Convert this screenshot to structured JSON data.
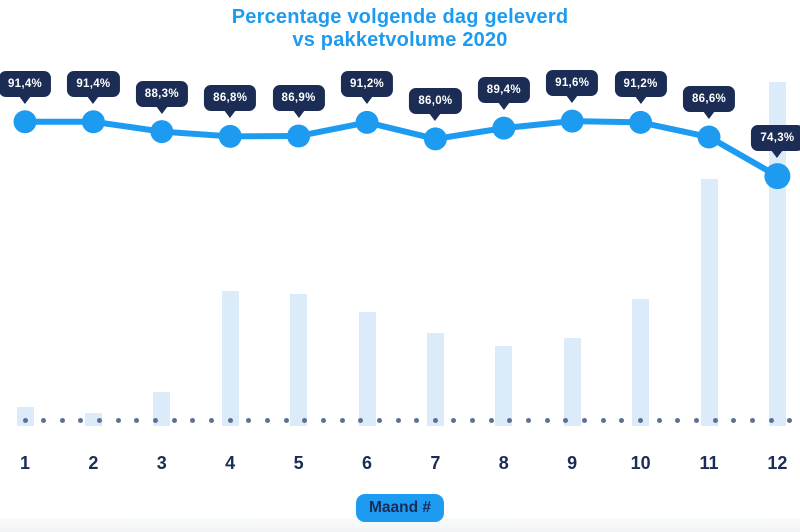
{
  "title": {
    "line1": "Percentage volgende dag geleverd",
    "line2": "vs pakketvolume 2020"
  },
  "x_axis": {
    "label_pill": "Maand #"
  },
  "chart_data": {
    "type": "line",
    "subtype": "line-with-bars-combo",
    "title": "Percentage volgende dag geleverd vs pakketvolume 2020",
    "xlabel": "Maand #",
    "ylabel": "",
    "legend": "none",
    "grid": "none (dotted baseline only)",
    "categories": [
      "1",
      "2",
      "3",
      "4",
      "5",
      "6",
      "7",
      "8",
      "9",
      "10",
      "11",
      "12"
    ],
    "series": [
      {
        "name": "Percentage volgende dag geleverd",
        "type": "line",
        "unit": "%",
        "values": [
          91.4,
          91.4,
          88.3,
          86.8,
          86.9,
          91.2,
          86.0,
          89.4,
          91.6,
          91.2,
          86.6,
          74.3
        ],
        "labels": [
          "91,4%",
          "91,4%",
          "88,3%",
          "86,8%",
          "86,9%",
          "91,2%",
          "86,0%",
          "89,4%",
          "91,6%",
          "91,2%",
          "86,6%",
          "74,3%"
        ]
      },
      {
        "name": "Pakketvolume 2020",
        "type": "bar",
        "unit": "relative height, max month = 100 (no value axis shown)",
        "values": [
          5.5,
          3.8,
          9.9,
          39.2,
          38.4,
          33.1,
          27.0,
          23.3,
          25.6,
          36.9,
          71.8,
          100
        ]
      }
    ]
  },
  "colors": {
    "accent_blue": "#1d9bf0",
    "navy": "#1b2c55",
    "bar_fill": "#dcebfa",
    "baseline_dot": "#5c7095",
    "badge_text": "#ffffff",
    "background": "#ffffff"
  }
}
